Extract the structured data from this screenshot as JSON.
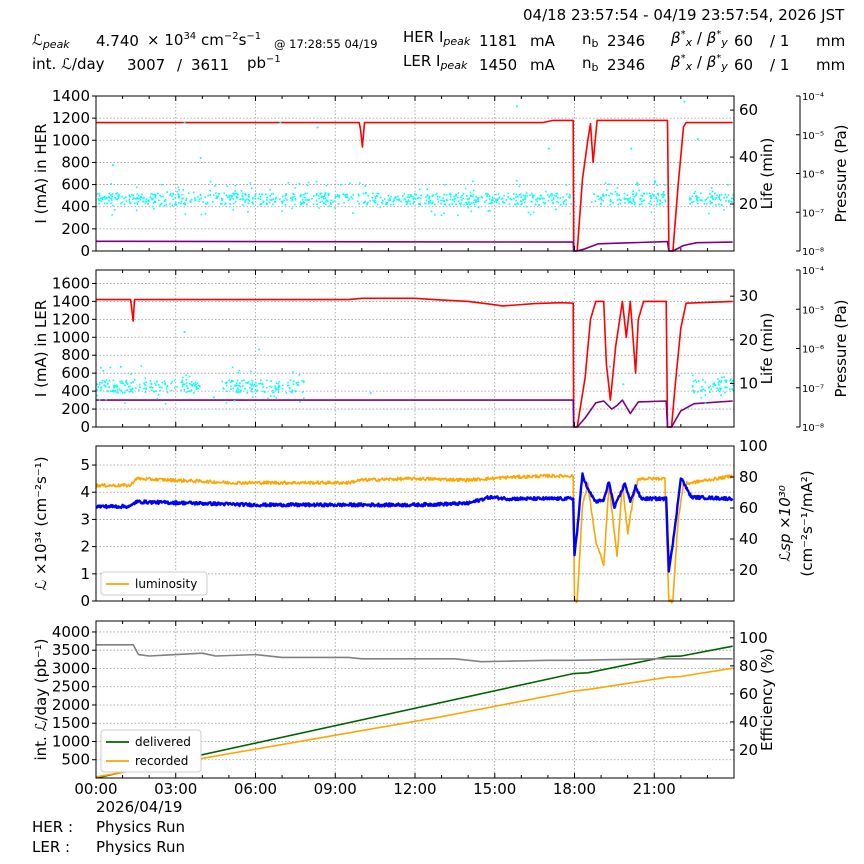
{
  "header": {
    "range": "04/18 23:57:54 - 04/19 23:57:54, 2026 JST",
    "lpeak_label": "ℒ",
    "lpeak_sub": "peak",
    "lpeak_value": "4.740",
    "lpeak_times": "× 10",
    "lpeak_exp": "34",
    "lpeak_unit_a": "cm",
    "lpeak_unit_ae": "−2",
    "lpeak_unit_b": "s",
    "lpeak_unit_be": "−1",
    "lpeak_time": "@ 17:28:55 04/19",
    "intl_label": "int. ℒ/day",
    "intl_value1": "3007",
    "intl_slash": "/",
    "intl_value2": "3611",
    "intl_unit": "pb",
    "intl_unit_e": "−1",
    "her_label": "HER I",
    "her_sub": "peak",
    "her_value": "1181",
    "her_unit": "mA",
    "ler_label": "LER I",
    "ler_sub": "peak",
    "ler_value": "1450",
    "ler_unit": "mA",
    "nb_label": "n",
    "nb_sub": "b",
    "her_nb": "2346",
    "ler_nb": "2346",
    "beta_label": "β",
    "beta_x": "x",
    "beta_y": "y",
    "beta_star": "*",
    "beta_slash": "/",
    "her_beta_x": "60",
    "her_beta_y": "/ 1",
    "ler_beta_x": "60",
    "ler_beta_y": "/ 1",
    "beta_unit": "mm"
  },
  "footer": {
    "date": "2026/04/19",
    "her_label": "HER :",
    "her_mode": "Physics Run",
    "ler_label": "LER :",
    "ler_mode": "Physics Run"
  },
  "colors": {
    "red": "#ff0000",
    "purple": "#800080",
    "cyan": "#00ffff",
    "orange": "#ffa500",
    "blue": "#0000ff",
    "green": "#006400",
    "gray": "#808080"
  },
  "chart_data": [
    {
      "type": "line",
      "id": "her",
      "ylabel": "I (mA) in HER",
      "y2label": "Life (min)",
      "y3label": "Pressure (Pa)",
      "xlim": [
        0,
        24
      ],
      "ylim": [
        0,
        1400
      ],
      "yticks": [
        0,
        200,
        400,
        600,
        800,
        1000,
        1200,
        1400
      ],
      "y2lim": [
        0,
        66
      ],
      "y2ticks": [
        20,
        40,
        60
      ],
      "y3ticks": [
        "10⁻⁸",
        "10⁻⁷",
        "10⁻⁶",
        "10⁻⁵",
        "10⁻⁴"
      ],
      "series": [
        {
          "color": "red",
          "kind": "line",
          "axis": "y",
          "points": [
            [
              0,
              1160
            ],
            [
              9.9,
              1160
            ],
            [
              9.95,
              1100
            ],
            [
              10.02,
              940
            ],
            [
              10.1,
              1160
            ],
            [
              16.8,
              1160
            ],
            [
              17.2,
              1180
            ],
            [
              17.95,
              1180
            ],
            [
              17.97,
              0
            ],
            [
              18.1,
              0
            ],
            [
              18.3,
              650
            ],
            [
              18.5,
              1000
            ],
            [
              18.6,
              1150
            ],
            [
              18.7,
              800
            ],
            [
              18.85,
              1180
            ],
            [
              21.5,
              1180
            ],
            [
              21.55,
              0
            ],
            [
              21.7,
              0
            ],
            [
              21.9,
              600
            ],
            [
              22.1,
              1120
            ],
            [
              22.2,
              1160
            ],
            [
              23.95,
              1160
            ]
          ]
        },
        {
          "color": "purple",
          "kind": "line",
          "axis": "y",
          "points": [
            [
              0,
              88
            ],
            [
              17.95,
              80
            ],
            [
              17.97,
              0
            ],
            [
              18.1,
              0
            ],
            [
              18.4,
              20
            ],
            [
              18.9,
              65
            ],
            [
              21.5,
              85
            ],
            [
              21.55,
              0
            ],
            [
              21.7,
              0
            ],
            [
              22.1,
              50
            ],
            [
              22.6,
              75
            ],
            [
              23.95,
              80
            ]
          ]
        },
        {
          "color": "cyan",
          "kind": "scatter",
          "axis": "y2",
          "segments": [
            [
              0,
              17.85,
              20,
              25
            ],
            [
              18.6,
              21.45,
              20,
              25
            ],
            [
              22.3,
              23.95,
              20,
              25
            ]
          ],
          "outliers": [
            [
              0.6,
              37
            ],
            [
              3.3,
              55
            ],
            [
              3.9,
              40
            ],
            [
              6.9,
              55
            ],
            [
              8.3,
              53
            ],
            [
              10.1,
              28
            ],
            [
              15.8,
              62
            ],
            [
              17.0,
              44
            ],
            [
              20.1,
              44
            ],
            [
              21.0,
              30
            ],
            [
              22.1,
              64
            ],
            [
              22.6,
              48
            ]
          ]
        }
      ]
    },
    {
      "type": "line",
      "id": "ler",
      "ylabel": "I (mA) in LER",
      "y2label": "Life (min)",
      "y3label": "Pressure (Pa)",
      "xlim": [
        0,
        24
      ],
      "ylim": [
        0,
        1750
      ],
      "yticks": [
        0,
        200,
        400,
        600,
        800,
        1000,
        1200,
        1400,
        1600
      ],
      "y2lim": [
        0,
        36
      ],
      "y2ticks": [
        10,
        20,
        30
      ],
      "y3ticks": [
        "10⁻⁸",
        "10⁻⁷",
        "10⁻⁶",
        "10⁻⁵",
        "10⁻⁴"
      ],
      "series": [
        {
          "color": "red",
          "kind": "line",
          "axis": "y",
          "points": [
            [
              0,
              1420
            ],
            [
              1.3,
              1420
            ],
            [
              1.35,
              1300
            ],
            [
              1.4,
              1180
            ],
            [
              1.45,
              1420
            ],
            [
              9.5,
              1420
            ],
            [
              10,
              1435
            ],
            [
              12,
              1435
            ],
            [
              12.7,
              1420
            ],
            [
              14,
              1400
            ],
            [
              14.8,
              1370
            ],
            [
              15.3,
              1350
            ],
            [
              15.8,
              1360
            ],
            [
              16.5,
              1375
            ],
            [
              17.5,
              1385
            ],
            [
              17.95,
              1380
            ],
            [
              17.97,
              0
            ],
            [
              18.1,
              0
            ],
            [
              18.4,
              550
            ],
            [
              18.6,
              1200
            ],
            [
              18.8,
              1400
            ],
            [
              19.1,
              1400
            ],
            [
              19.2,
              700
            ],
            [
              19.35,
              300
            ],
            [
              19.55,
              900
            ],
            [
              19.8,
              1400
            ],
            [
              19.95,
              1000
            ],
            [
              20.1,
              1400
            ],
            [
              20.2,
              1000
            ],
            [
              20.3,
              600
            ],
            [
              20.4,
              1200
            ],
            [
              20.6,
              1400
            ],
            [
              21.45,
              1400
            ],
            [
              21.5,
              0
            ],
            [
              21.65,
              0
            ],
            [
              21.8,
              500
            ],
            [
              22.0,
              1100
            ],
            [
              22.2,
              1380
            ],
            [
              23.95,
              1400
            ]
          ]
        },
        {
          "color": "purple",
          "kind": "line",
          "axis": "y",
          "points": [
            [
              0,
              300
            ],
            [
              17.95,
              300
            ],
            [
              17.97,
              0
            ],
            [
              18.1,
              0
            ],
            [
              18.4,
              100
            ],
            [
              18.8,
              270
            ],
            [
              19.1,
              290
            ],
            [
              19.4,
              200
            ],
            [
              19.6,
              240
            ],
            [
              19.8,
              300
            ],
            [
              20.1,
              150
            ],
            [
              20.4,
              280
            ],
            [
              21.45,
              290
            ],
            [
              21.5,
              0
            ],
            [
              21.65,
              0
            ],
            [
              22.0,
              180
            ],
            [
              22.5,
              260
            ],
            [
              23.95,
              290
            ]
          ]
        },
        {
          "color": "cyan",
          "kind": "scatter",
          "axis": "y2",
          "segments": [
            [
              0,
              3.9,
              8,
              11
            ],
            [
              4.7,
              7.8,
              8,
              11
            ],
            [
              22.4,
              23.95,
              8,
              11
            ]
          ],
          "outliers": [
            [
              0.9,
              14
            ],
            [
              3.3,
              22
            ],
            [
              4.4,
              7
            ],
            [
              6.1,
              18
            ],
            [
              10.3,
              8
            ],
            [
              19.3,
              14
            ],
            [
              19.8,
              10
            ],
            [
              21.9,
              12
            ]
          ]
        }
      ]
    },
    {
      "type": "line",
      "id": "lumi",
      "ylabel": "ℒ ×10³⁴ (cm⁻²s⁻¹)",
      "y2label_a": "ℒsp ×10³⁰",
      "y2label_b": "(cm⁻²s⁻¹/mA²)",
      "legend": [
        "luminosity"
      ],
      "legend_position": "bottom-left",
      "xlim": [
        0,
        24
      ],
      "ylim": [
        0,
        5.7
      ],
      "yticks": [
        0,
        1,
        2,
        3,
        4,
        5
      ],
      "y2lim": [
        0,
        100
      ],
      "y2ticks": [
        20,
        40,
        60,
        80,
        100
      ],
      "series": [
        {
          "name": "luminosity",
          "color": "orange",
          "kind": "line",
          "axis": "y",
          "noise": 0.06,
          "points": [
            [
              0,
              4.25
            ],
            [
              1.3,
              4.25
            ],
            [
              1.5,
              4.5
            ],
            [
              4,
              4.4
            ],
            [
              5,
              4.35
            ],
            [
              9.5,
              4.35
            ],
            [
              10,
              4.45
            ],
            [
              12,
              4.5
            ],
            [
              14,
              4.45
            ],
            [
              15.5,
              4.55
            ],
            [
              17,
              4.6
            ],
            [
              17.95,
              4.6
            ],
            [
              18.0,
              0
            ],
            [
              18.1,
              0
            ],
            [
              18.3,
              3.5
            ],
            [
              18.5,
              4.3
            ],
            [
              18.8,
              2.2
            ],
            [
              19.1,
              1.3
            ],
            [
              19.3,
              4.3
            ],
            [
              19.6,
              1.6
            ],
            [
              19.8,
              4.3
            ],
            [
              20.0,
              2.5
            ],
            [
              20.2,
              3.7
            ],
            [
              20.4,
              4.5
            ],
            [
              21.4,
              4.5
            ],
            [
              21.5,
              1.5
            ],
            [
              21.55,
              0
            ],
            [
              21.7,
              0
            ],
            [
              21.9,
              3.0
            ],
            [
              22.1,
              4.3
            ],
            [
              23.95,
              4.6
            ]
          ]
        },
        {
          "color": "blue",
          "kind": "line",
          "axis": "y2",
          "noise": 1.0,
          "points": [
            [
              0,
              61
            ],
            [
              1.3,
              61
            ],
            [
              1.5,
              64
            ],
            [
              4,
              63
            ],
            [
              6,
              62
            ],
            [
              9.5,
              62
            ],
            [
              12,
              62
            ],
            [
              14,
              63
            ],
            [
              14.8,
              67
            ],
            [
              15.5,
              66
            ],
            [
              16.5,
              66
            ],
            [
              17.95,
              66
            ],
            [
              18.0,
              30
            ],
            [
              18.1,
              45
            ],
            [
              18.3,
              82
            ],
            [
              18.5,
              72
            ],
            [
              18.8,
              64
            ],
            [
              19.1,
              65
            ],
            [
              19.3,
              77
            ],
            [
              19.5,
              60
            ],
            [
              19.7,
              68
            ],
            [
              19.9,
              76
            ],
            [
              20.1,
              64
            ],
            [
              20.3,
              74
            ],
            [
              20.5,
              66
            ],
            [
              21.45,
              66
            ],
            [
              21.55,
              20
            ],
            [
              21.8,
              50
            ],
            [
              22.0,
              80
            ],
            [
              22.2,
              73
            ],
            [
              22.4,
              67
            ],
            [
              23.95,
              66
            ]
          ]
        }
      ]
    },
    {
      "type": "line",
      "id": "intl",
      "ylabel": "int. ℒ/day (pb⁻¹)",
      "y2label": "Efficiency (%)",
      "legend": [
        "delivered",
        "recorded"
      ],
      "legend_position": "bottom-left",
      "xlim": [
        0,
        24
      ],
      "xticks": [
        "00:00",
        "03:00",
        "06:00",
        "09:00",
        "12:00",
        "15:00",
        "18:00",
        "21:00"
      ],
      "ylim": [
        0,
        4300
      ],
      "yticks": [
        500,
        1000,
        1500,
        2000,
        2500,
        3000,
        3500,
        4000
      ],
      "y2lim": [
        0,
        112
      ],
      "y2ticks": [
        20,
        40,
        60,
        80,
        100
      ],
      "series": [
        {
          "name": "delivered",
          "color": "green",
          "kind": "line",
          "axis": "y",
          "points": [
            [
              0,
              0
            ],
            [
              17.95,
              2860
            ],
            [
              18.5,
              2880
            ],
            [
              21.5,
              3330
            ],
            [
              22.0,
              3340
            ],
            [
              23.95,
              3611
            ]
          ]
        },
        {
          "name": "recorded",
          "color": "orange",
          "kind": "line",
          "axis": "y",
          "points": [
            [
              0,
              30
            ],
            [
              13,
              1680
            ],
            [
              14,
              1820
            ],
            [
              17.95,
              2380
            ],
            [
              18.5,
              2420
            ],
            [
              21.5,
              2760
            ],
            [
              22.0,
              2780
            ],
            [
              23.95,
              3007
            ]
          ]
        },
        {
          "color": "gray",
          "kind": "line",
          "axis": "y2",
          "points": [
            [
              0,
              95
            ],
            [
              1.4,
              95
            ],
            [
              1.6,
              88
            ],
            [
              2.0,
              87
            ],
            [
              3.0,
              88
            ],
            [
              4.0,
              89
            ],
            [
              4.5,
              87
            ],
            [
              6.0,
              88
            ],
            [
              7.0,
              86
            ],
            [
              9.5,
              86
            ],
            [
              10.0,
              85
            ],
            [
              13.5,
              85
            ],
            [
              14.5,
              83
            ],
            [
              17.0,
              84
            ],
            [
              17.95,
              84
            ],
            [
              21.0,
              85
            ],
            [
              23.95,
              85
            ]
          ]
        }
      ]
    }
  ]
}
